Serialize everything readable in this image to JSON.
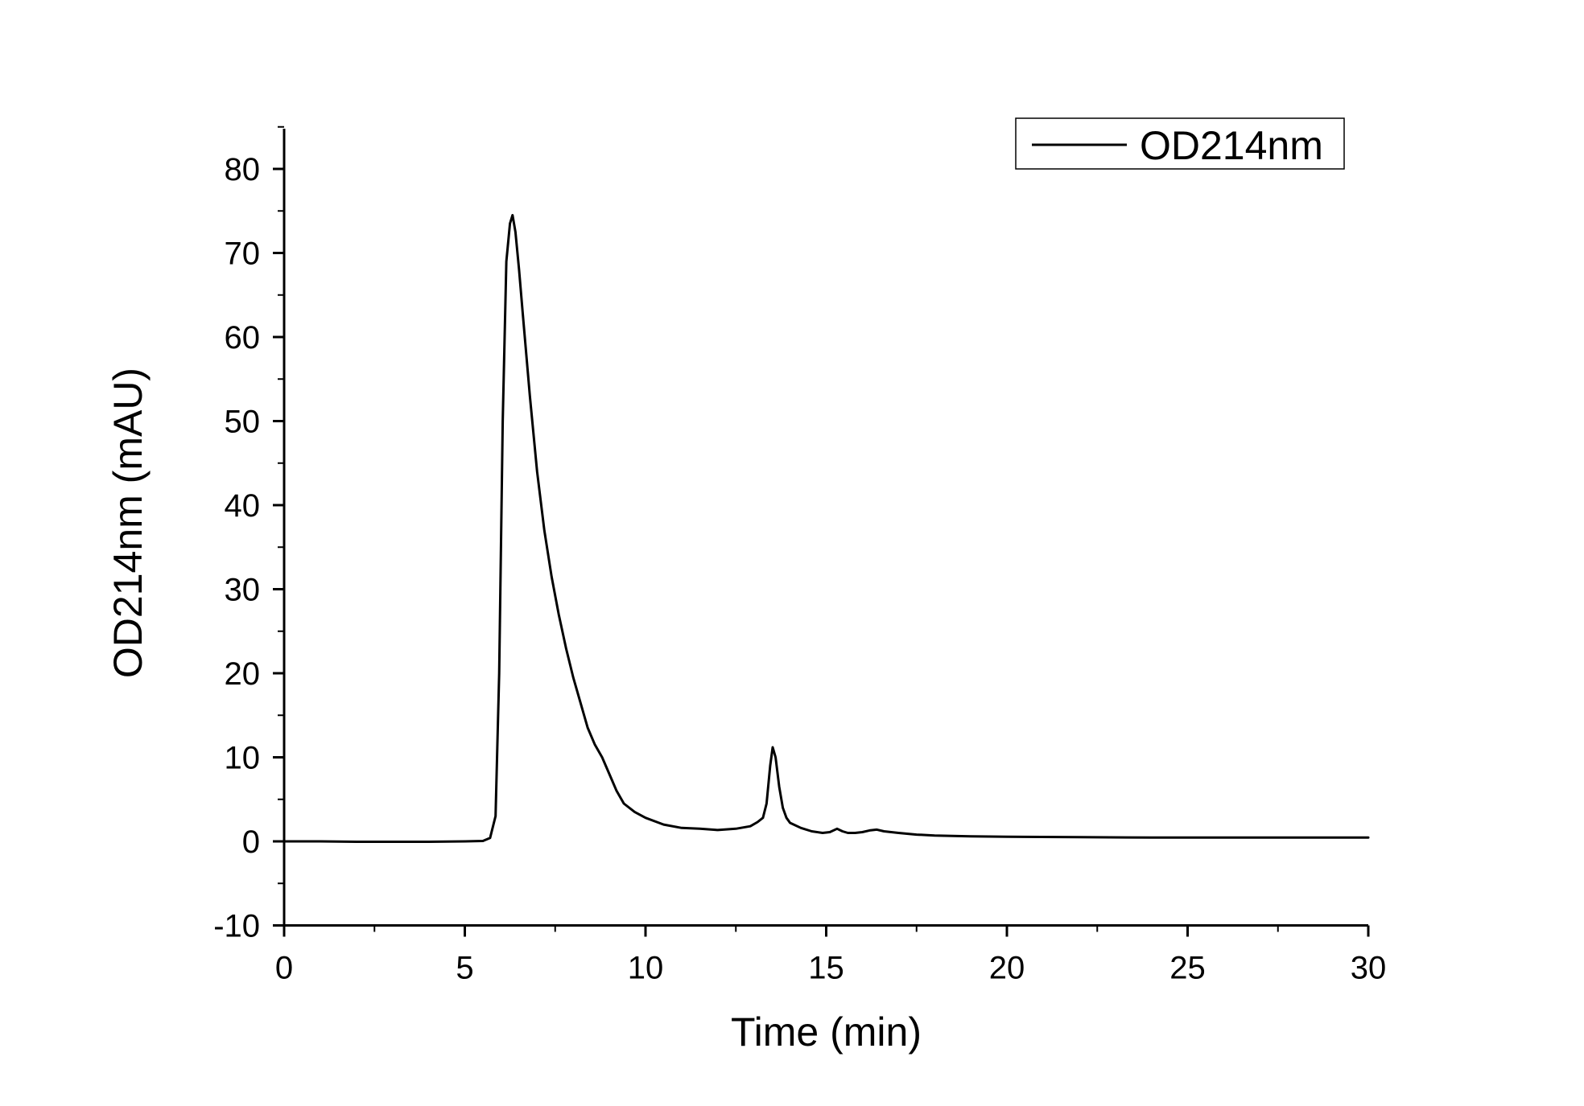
{
  "chart_data": {
    "type": "line",
    "xlabel": "Time (min)",
    "ylabel": "OD214nm (mAU)",
    "xlim": [
      0,
      30
    ],
    "ylim": [
      -10,
      85
    ],
    "x_ticks": [
      0,
      5,
      10,
      15,
      20,
      25,
      30
    ],
    "y_ticks": [
      -10,
      0,
      10,
      20,
      30,
      40,
      50,
      60,
      70,
      80
    ],
    "grid": false,
    "legend": {
      "position": "top-right",
      "entries": [
        "OD214nm"
      ]
    },
    "line_color": "#000000",
    "series": [
      {
        "name": "OD214nm",
        "x": [
          0,
          1,
          2,
          3,
          4,
          5,
          5.5,
          5.7,
          5.85,
          5.95,
          6.05,
          6.15,
          6.25,
          6.32,
          6.4,
          6.5,
          6.6,
          6.8,
          7.0,
          7.2,
          7.4,
          7.6,
          7.8,
          8.0,
          8.2,
          8.4,
          8.6,
          8.8,
          9.0,
          9.2,
          9.4,
          9.7,
          10.0,
          10.5,
          11.0,
          11.5,
          12.0,
          12.5,
          12.9,
          13.1,
          13.25,
          13.35,
          13.45,
          13.52,
          13.6,
          13.7,
          13.8,
          13.9,
          14.0,
          14.3,
          14.6,
          14.9,
          15.1,
          15.3,
          15.45,
          15.6,
          15.8,
          16.0,
          16.2,
          16.4,
          16.6,
          17.0,
          17.5,
          18.0,
          19.0,
          20.0,
          22.0,
          24.0,
          26.0,
          28.0,
          30.0
        ],
        "values": [
          0,
          0,
          -0.05,
          -0.05,
          -0.05,
          0,
          0.05,
          0.4,
          3.0,
          20.0,
          50.0,
          69.0,
          73.5,
          74.5,
          72.5,
          68.0,
          63.0,
          53.0,
          44.0,
          37.0,
          31.5,
          27.0,
          23.0,
          19.5,
          16.5,
          13.5,
          11.5,
          10.0,
          8.0,
          6.0,
          4.5,
          3.5,
          2.8,
          2.0,
          1.6,
          1.5,
          1.35,
          1.5,
          1.8,
          2.3,
          2.8,
          4.5,
          9.0,
          11.2,
          10.0,
          6.5,
          4.0,
          2.8,
          2.2,
          1.6,
          1.2,
          1.0,
          1.1,
          1.5,
          1.2,
          1.0,
          1.0,
          1.1,
          1.3,
          1.4,
          1.2,
          1.0,
          0.8,
          0.7,
          0.6,
          0.55,
          0.5,
          0.45,
          0.45,
          0.45,
          0.45
        ]
      }
    ]
  }
}
